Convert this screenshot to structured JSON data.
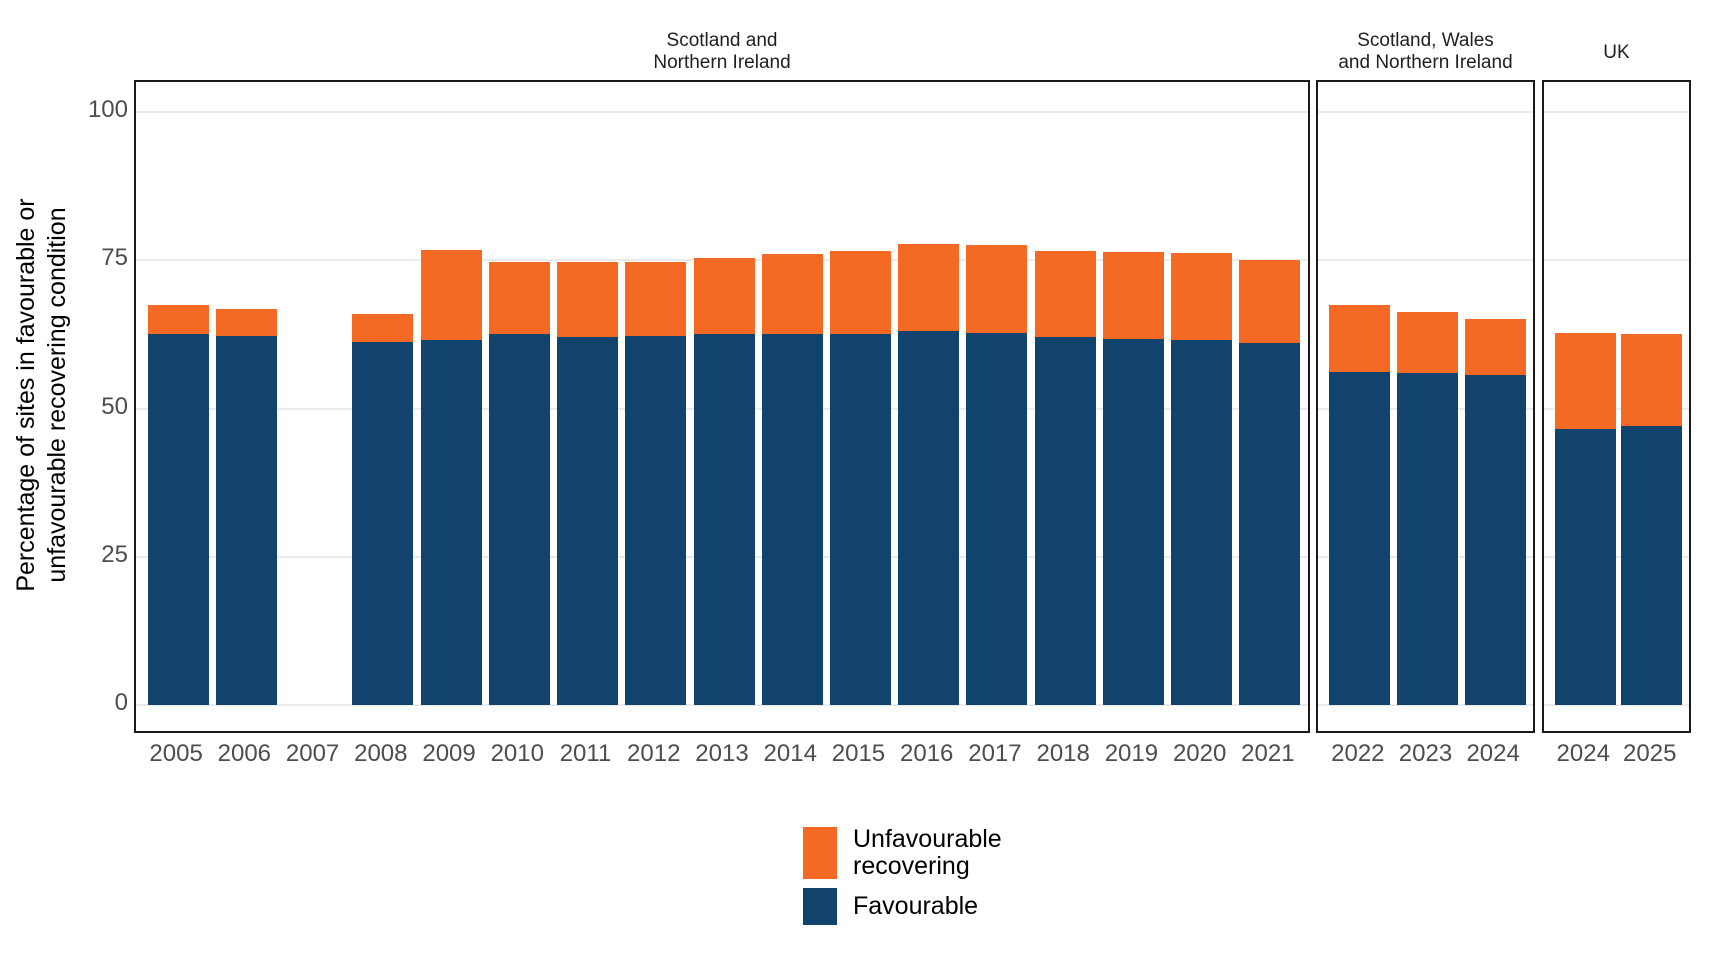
{
  "figure": {
    "y_axis_title_lines": [
      "Percentage of sites in favourable or",
      "unfavourable recovering condition"
    ],
    "y_ticks": [
      0,
      25,
      50,
      75,
      100
    ],
    "colors": {
      "favourable": "#12436D",
      "unfavourable_recovering": "#F46A25",
      "gridline": "#EBEBEB",
      "panel_border": "#1A1A1A",
      "axis_text": "#4D4D4D"
    }
  },
  "chart_data": {
    "type": "bar",
    "stacked": true,
    "ylim": [
      0,
      100
    ],
    "grid": "horizontal",
    "ylabel": "Percentage of sites in favourable or unfavourable recovering condition",
    "legend_position": "bottom-center",
    "legend": [
      {
        "label": "Unfavourable recovering",
        "color": "#F46A25"
      },
      {
        "label": "Favourable",
        "color": "#12436D"
      }
    ],
    "panels": [
      {
        "title_lines": [
          "Scotland and",
          "Northern Ireland"
        ],
        "years": [
          "2005",
          "2006",
          "2007",
          "2008",
          "2009",
          "2010",
          "2011",
          "2012",
          "2013",
          "2014",
          "2015",
          "2016",
          "2017",
          "2018",
          "2019",
          "2020",
          "2021"
        ],
        "series": [
          {
            "name": "Favourable",
            "values": [
              62.6,
              62.3,
              null,
              61.2,
              61.6,
              62.6,
              62.1,
              62.2,
              62.6,
              62.5,
              62.5,
              63.1,
              62.7,
              62.1,
              61.7,
              61.5,
              61.0
            ]
          },
          {
            "name": "Unfavourable recovering",
            "values": [
              4.8,
              4.4,
              null,
              4.7,
              15.1,
              12.1,
              12.6,
              12.5,
              12.7,
              13.5,
              14.0,
              14.6,
              14.8,
              14.5,
              14.7,
              14.8,
              14.1
            ]
          }
        ]
      },
      {
        "title_lines": [
          "Scotland, Wales",
          "and Northern Ireland"
        ],
        "years": [
          "2022",
          "2023",
          "2024"
        ],
        "series": [
          {
            "name": "Favourable",
            "values": [
              56.2,
              56.0,
              55.6
            ]
          },
          {
            "name": "Unfavourable recovering",
            "values": [
              11.3,
              10.2,
              9.5
            ]
          }
        ]
      },
      {
        "title_lines": [
          "UK"
        ],
        "years": [
          "2024",
          "2025"
        ],
        "series": [
          {
            "name": "Favourable",
            "values": [
              46.6,
              47.1
            ]
          },
          {
            "name": "Unfavourable recovering",
            "values": [
              16.1,
              15.4
            ]
          }
        ]
      }
    ]
  },
  "legend": {
    "items": [
      {
        "label_lines": [
          "Unfavourable",
          "recovering"
        ],
        "color": "#F46A25"
      },
      {
        "label_lines": [
          "Favourable"
        ],
        "color": "#12436D"
      }
    ]
  }
}
